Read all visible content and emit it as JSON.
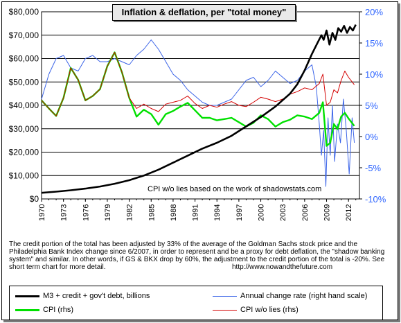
{
  "chart_data": {
    "type": "line",
    "title": "Inflation & deflation, per \"total money\"",
    "x_ticks": [
      "1970",
      "1973",
      "1976",
      "1979",
      "1982",
      "1985",
      "1988",
      "1991",
      "1994",
      "1997",
      "2000",
      "2003",
      "2006",
      "2009",
      "2012"
    ],
    "x_range": [
      1970,
      2013.5
    ],
    "y_left_ticks": [
      "$0",
      "$10,000",
      "$20,000",
      "$30,000",
      "$40,000",
      "$50,000",
      "$60,000",
      "$70,000",
      "$80,000"
    ],
    "y_left_range": [
      0,
      80000
    ],
    "y_right_ticks": [
      "-10%",
      "-5%",
      "0%",
      "5%",
      "10%",
      "15%",
      "20%"
    ],
    "y_right_range": [
      -10,
      20
    ],
    "grid": "horizontal",
    "series": [
      {
        "name": "M3 + credit + gov't debt, billions",
        "axis": "left",
        "color": "#000000",
        "points": [
          [
            1970,
            2600
          ],
          [
            1972,
            3100
          ],
          [
            1974,
            3700
          ],
          [
            1976,
            4400
          ],
          [
            1978,
            5300
          ],
          [
            1980,
            6500
          ],
          [
            1982,
            8000
          ],
          [
            1984,
            10000
          ],
          [
            1986,
            12500
          ],
          [
            1988,
            15500
          ],
          [
            1990,
            18500
          ],
          [
            1992,
            21500
          ],
          [
            1994,
            24000
          ],
          [
            1996,
            27000
          ],
          [
            1998,
            31000
          ],
          [
            2000,
            35000
          ],
          [
            2002,
            39500
          ],
          [
            2004,
            45000
          ],
          [
            2005,
            49000
          ],
          [
            2006,
            55000
          ],
          [
            2007,
            62000
          ],
          [
            2007.8,
            67000
          ],
          [
            2008.3,
            70000
          ],
          [
            2008.6,
            68000
          ],
          [
            2009,
            72000
          ],
          [
            2009.4,
            66000
          ],
          [
            2009.8,
            71000
          ],
          [
            2010.2,
            68000
          ],
          [
            2010.6,
            73000
          ],
          [
            2011,
            71500
          ],
          [
            2011.4,
            74000
          ],
          [
            2011.8,
            71000
          ],
          [
            2012.2,
            73500
          ],
          [
            2012.6,
            72000
          ],
          [
            2013,
            74500
          ]
        ]
      },
      {
        "name": "Annual change rate (right hand scale)",
        "axis": "right",
        "color": "#3b64e8",
        "points": [
          [
            1970,
            6
          ],
          [
            1971,
            10
          ],
          [
            1972,
            12.5
          ],
          [
            1973,
            13
          ],
          [
            1974,
            11
          ],
          [
            1975,
            10.5
          ],
          [
            1976,
            12.5
          ],
          [
            1977,
            13
          ],
          [
            1978,
            12
          ],
          [
            1979,
            12
          ],
          [
            1980,
            12.5
          ],
          [
            1981,
            12
          ],
          [
            1982,
            11.5
          ],
          [
            1983,
            13
          ],
          [
            1984,
            14
          ],
          [
            1985,
            15.5
          ],
          [
            1986,
            14
          ],
          [
            1987,
            12
          ],
          [
            1988,
            10
          ],
          [
            1989,
            9
          ],
          [
            1990,
            7.5
          ],
          [
            1991,
            6.5
          ],
          [
            1992,
            5.5
          ],
          [
            1993,
            5
          ],
          [
            1994,
            5
          ],
          [
            1995,
            5.5
          ],
          [
            1996,
            6
          ],
          [
            1997,
            7.5
          ],
          [
            1998,
            9
          ],
          [
            1999,
            9.5
          ],
          [
            2000,
            8
          ],
          [
            2001,
            9
          ],
          [
            2002,
            10.5
          ],
          [
            2003,
            9.5
          ],
          [
            2004,
            8.5
          ],
          [
            2005,
            9
          ],
          [
            2006,
            10.5
          ],
          [
            2007,
            11.5
          ],
          [
            2007.6,
            8
          ],
          [
            2008,
            2
          ],
          [
            2008.3,
            -3
          ],
          [
            2008.6,
            1
          ],
          [
            2008.9,
            -8
          ],
          [
            2009.2,
            3
          ],
          [
            2009.5,
            -3
          ],
          [
            2009.8,
            5
          ],
          [
            2010.1,
            -4
          ],
          [
            2010.5,
            2
          ],
          [
            2010.9,
            -1
          ],
          [
            2011.3,
            6
          ],
          [
            2011.7,
            1
          ],
          [
            2012.1,
            -6
          ],
          [
            2012.5,
            3
          ],
          [
            2012.8,
            -1
          ]
        ]
      },
      {
        "name": "CPI (rhs)",
        "axis": "right",
        "color": "#00e000",
        "points": [
          [
            1970,
            5.8
          ],
          [
            1971,
            4.5
          ],
          [
            1972,
            3.3
          ],
          [
            1973,
            6.2
          ],
          [
            1974,
            11
          ],
          [
            1975,
            9.1
          ],
          [
            1976,
            5.8
          ],
          [
            1977,
            6.5
          ],
          [
            1978,
            7.6
          ],
          [
            1979,
            11.3
          ],
          [
            1980,
            13.5
          ],
          [
            1981,
            10.3
          ],
          [
            1982,
            6.2
          ],
          [
            1983,
            3.2
          ],
          [
            1984,
            4.3
          ],
          [
            1985,
            3.6
          ],
          [
            1986,
            1.9
          ],
          [
            1987,
            3.6
          ],
          [
            1988,
            4.1
          ],
          [
            1989,
            4.8
          ],
          [
            1990,
            5.4
          ],
          [
            1991,
            4.2
          ],
          [
            1992,
            3.0
          ],
          [
            1993,
            3.0
          ],
          [
            1994,
            2.6
          ],
          [
            1995,
            2.8
          ],
          [
            1996,
            3.0
          ],
          [
            1997,
            2.3
          ],
          [
            1998,
            1.6
          ],
          [
            1999,
            2.2
          ],
          [
            2000,
            3.4
          ],
          [
            2001,
            2.8
          ],
          [
            2002,
            1.6
          ],
          [
            2003,
            2.3
          ],
          [
            2004,
            2.7
          ],
          [
            2005,
            3.4
          ],
          [
            2006,
            3.2
          ],
          [
            2007,
            2.8
          ],
          [
            2008,
            3.8
          ],
          [
            2008.5,
            5.5
          ],
          [
            2009,
            -1.5
          ],
          [
            2009.5,
            -1
          ],
          [
            2010,
            2
          ],
          [
            2010.5,
            1.2
          ],
          [
            2011,
            3.2
          ],
          [
            2011.5,
            3.8
          ],
          [
            2012,
            2.9
          ],
          [
            2012.8,
            1.7
          ]
        ]
      },
      {
        "name": "CPI w/o lies (rhs)",
        "axis": "right",
        "color": "#d40000",
        "points": [
          [
            1970,
            5.8
          ],
          [
            1971,
            4.5
          ],
          [
            1972,
            3.3
          ],
          [
            1973,
            6.2
          ],
          [
            1974,
            11
          ],
          [
            1975,
            9.1
          ],
          [
            1976,
            5.8
          ],
          [
            1977,
            6.5
          ],
          [
            1978,
            7.6
          ],
          [
            1979,
            11.3
          ],
          [
            1980,
            13.5
          ],
          [
            1981,
            10.3
          ],
          [
            1982,
            6.2
          ],
          [
            1983,
            4.5
          ],
          [
            1984,
            5.2
          ],
          [
            1985,
            4.5
          ],
          [
            1986,
            4
          ],
          [
            1987,
            5.2
          ],
          [
            1988,
            5.5
          ],
          [
            1989,
            5.8
          ],
          [
            1990,
            6.5
          ],
          [
            1991,
            5.3
          ],
          [
            1992,
            4.5
          ],
          [
            1993,
            5
          ],
          [
            1994,
            4.7
          ],
          [
            1995,
            5.2
          ],
          [
            1996,
            5.6
          ],
          [
            1997,
            5
          ],
          [
            1998,
            4.8
          ],
          [
            1999,
            5.5
          ],
          [
            2000,
            6.3
          ],
          [
            2001,
            6
          ],
          [
            2002,
            5.6
          ],
          [
            2003,
            6
          ],
          [
            2004,
            6.8
          ],
          [
            2005,
            7.2
          ],
          [
            2006,
            7.8
          ],
          [
            2007,
            7.5
          ],
          [
            2008,
            8.5
          ],
          [
            2008.5,
            10
          ],
          [
            2009,
            5
          ],
          [
            2009.5,
            5.5
          ],
          [
            2010,
            7.5
          ],
          [
            2010.5,
            7
          ],
          [
            2011,
            9
          ],
          [
            2011.5,
            10.5
          ],
          [
            2012,
            9.5
          ],
          [
            2012.8,
            8.3
          ]
        ]
      }
    ],
    "annotation": "CPI w/o lies based on the work of shadowstats.com",
    "note": "The credit portion of the total has been adjusted by 33% of the average of the Goldman Sachs stock price and the Philadelphia Bank Index change since 6/2007, in order to represent and be a proxy for debt deflation, the \"shadow banking system\" and similar.  In other words, if GS & BKX drop by 60%, the adjustment to the credit portion of the total is -20%.  See short term chart for more detail.",
    "note_url": "http://www.nowandthefuture.com",
    "legend_placement": "bottom"
  }
}
